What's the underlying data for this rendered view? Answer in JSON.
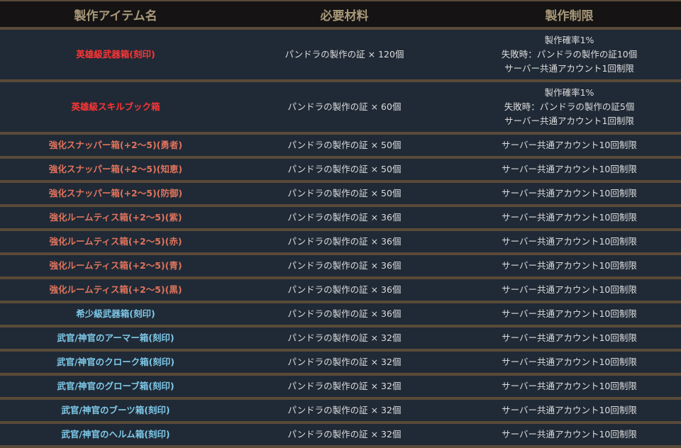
{
  "headers": [
    "製作アイテム名",
    "必要材料",
    "製作制限"
  ],
  "colors": {
    "red": "#ff3535",
    "salmon": "#e0735c",
    "blue": "#7ec8e8",
    "header": "#a89878",
    "border": "#5a4a38",
    "background": "#202a36"
  },
  "rows": [
    {
      "name": "英雄級武器箱(刻印)",
      "color": "red",
      "material": "パンドラの製作の証 × 120個",
      "limit": [
        "製作確率1%",
        "失敗時：パンドラの製作の証10個",
        "サーバー共通アカウント1回制限"
      ]
    },
    {
      "name": "英雄級スキルブック箱",
      "color": "red",
      "material": "パンドラの製作の証 × 60個",
      "limit": [
        "製作確率1%",
        "失敗時：パンドラの製作の証5個",
        "サーバー共通アカウント1回制限"
      ]
    },
    {
      "name": "強化スナッパー箱(+2〜5)(勇者)",
      "color": "salmon",
      "material": "パンドラの製作の証 × 50個",
      "limit": [
        "サーバー共通アカウント10回制限"
      ]
    },
    {
      "name": "強化スナッパー箱(+2〜5)(知恵)",
      "color": "salmon",
      "material": "パンドラの製作の証 × 50個",
      "limit": [
        "サーバー共通アカウント10回制限"
      ]
    },
    {
      "name": "強化スナッパー箱(+2〜5)(防御)",
      "color": "salmon",
      "material": "パンドラの製作の証 × 50個",
      "limit": [
        "サーバー共通アカウント10回制限"
      ]
    },
    {
      "name": "強化ルームティス箱(+2〜5)(紫)",
      "color": "salmon",
      "material": "パンドラの製作の証 × 36個",
      "limit": [
        "サーバー共通アカウント10回制限"
      ]
    },
    {
      "name": "強化ルームティス箱(+2〜5)(赤)",
      "color": "salmon",
      "material": "パンドラの製作の証 × 36個",
      "limit": [
        "サーバー共通アカウント10回制限"
      ]
    },
    {
      "name": "強化ルームティス箱(+2〜5)(青)",
      "color": "salmon",
      "material": "パンドラの製作の証 × 36個",
      "limit": [
        "サーバー共通アカウント10回制限"
      ]
    },
    {
      "name": "強化ルームティス箱(+2〜5)(黒)",
      "color": "salmon",
      "material": "パンドラの製作の証 × 36個",
      "limit": [
        "サーバー共通アカウント10回制限"
      ]
    },
    {
      "name": "希少級武器箱(刻印)",
      "color": "blue",
      "material": "パンドラの製作の証 × 36個",
      "limit": [
        "サーバー共通アカウント10回制限"
      ]
    },
    {
      "name": "武官/神官のアーマー箱(刻印)",
      "color": "blue",
      "material": "パンドラの製作の証 × 32個",
      "limit": [
        "サーバー共通アカウント10回制限"
      ]
    },
    {
      "name": "武官/神官のクローク箱(刻印)",
      "color": "blue",
      "material": "パンドラの製作の証 × 32個",
      "limit": [
        "サーバー共通アカウント10回制限"
      ]
    },
    {
      "name": "武官/神官のグローブ箱(刻印)",
      "color": "blue",
      "material": "パンドラの製作の証 × 32個",
      "limit": [
        "サーバー共通アカウント10回制限"
      ]
    },
    {
      "name": "武官/神官のブーツ箱(刻印)",
      "color": "blue",
      "material": "パンドラの製作の証 × 32個",
      "limit": [
        "サーバー共通アカウント10回制限"
      ]
    },
    {
      "name": "武官/神官のヘルム箱(刻印)",
      "color": "blue",
      "material": "パンドラの製作の証 × 32個",
      "limit": [
        "サーバー共通アカウント10回制限"
      ]
    }
  ]
}
